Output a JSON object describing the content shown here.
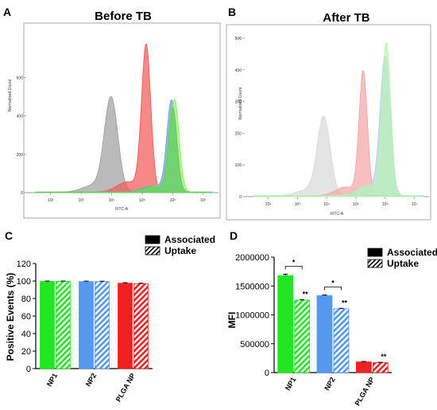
{
  "panels": {
    "a": {
      "letter": "A",
      "title": "Before TB"
    },
    "b": {
      "letter": "B",
      "title": "After TB"
    },
    "c": {
      "letter": "C"
    },
    "d": {
      "letter": "D"
    }
  },
  "flow": {
    "xlabel": "FITC-A",
    "ylabel": "Normalized Count",
    "x_ticks": [
      {
        "v": 2,
        "label": "10²"
      },
      {
        "v": 3,
        "label": "10³"
      },
      {
        "v": 4,
        "label": "10⁴"
      },
      {
        "v": 5,
        "label": "10⁵"
      },
      {
        "v": 6,
        "label": "10⁶"
      },
      {
        "v": 7,
        "label": "10⁷"
      }
    ]
  },
  "chart_data": [
    {
      "type": "area",
      "panel": "A",
      "title": "Before TB",
      "xlabel": "FITC-A",
      "ylabel": "Normalized Count",
      "x_scale": "log10",
      "xlim": [
        1.2,
        7.5
      ],
      "ylim": [
        0,
        860
      ],
      "y_ticks": [
        0,
        200,
        400,
        600
      ],
      "series": [
        {
          "color": "#a0a0a0",
          "peak_x": 3.98,
          "peak_y": 492,
          "spread": 0.22
        },
        {
          "color": "#f25a5a",
          "peak_x": 5.13,
          "peak_y": 766,
          "spread": 0.15
        },
        {
          "color": "#6fa0e0",
          "peak_x": 5.96,
          "peak_y": 476,
          "spread": 0.15
        },
        {
          "color": "#94f064",
          "peak_x": 6.06,
          "peak_y": 478,
          "spread": 0.15
        },
        {
          "color": "#66cc66",
          "peak_x": 6.0,
          "peak_y": 440,
          "spread": 0.14
        }
      ]
    },
    {
      "type": "area",
      "panel": "B",
      "title": "After TB",
      "xlabel": "FITC-A",
      "ylabel": "Normalized Count",
      "x_scale": "log10",
      "xlim": [
        1.2,
        7.5
      ],
      "ylim": [
        0,
        520
      ],
      "y_ticks": [
        0,
        100,
        200,
        300,
        400,
        500
      ],
      "series": [
        {
          "color": "#d9d9d9",
          "peak_x": 3.9,
          "peak_y": 248,
          "spread": 0.22
        },
        {
          "color": "#f4a6a6",
          "peak_x": 5.25,
          "peak_y": 392,
          "spread": 0.14
        },
        {
          "color": "#b3cdf2",
          "peak_x": 6.0,
          "peak_y": 436,
          "spread": 0.17
        },
        {
          "color": "#b8f2b0",
          "peak_x": 6.04,
          "peak_y": 478,
          "spread": 0.15
        }
      ]
    },
    {
      "type": "bar",
      "panel": "C",
      "ylabel": "Positive Events (%)",
      "ylim": [
        0,
        120
      ],
      "y_ticks": [
        0,
        20,
        40,
        60,
        80,
        100,
        120
      ],
      "categories": [
        "NP1",
        "NP2",
        "PLGA NP"
      ],
      "colors": [
        "#22e622",
        "#5599ee",
        "#ee2222"
      ],
      "series": [
        {
          "name": "Associated",
          "values": [
            99.5,
            99.4,
            97.5
          ],
          "errors": [
            0.5,
            0.5,
            0.6
          ]
        },
        {
          "name": "Uptake",
          "values": [
            99.6,
            99.4,
            97.0
          ],
          "errors": [
            0.4,
            0.4,
            0.5
          ]
        }
      ],
      "legend_position": "top-right"
    },
    {
      "type": "bar",
      "panel": "D",
      "ylabel": "MFI",
      "ylim": [
        0,
        2000000
      ],
      "y_ticks": [
        0,
        500000,
        1000000,
        1500000,
        2000000
      ],
      "categories": [
        "NP1",
        "NP2",
        "PLGA NP"
      ],
      "colors": [
        "#22e622",
        "#5599ee",
        "#ee2222"
      ],
      "series": [
        {
          "name": "Associated",
          "values": [
            1680000,
            1335000,
            185000
          ],
          "errors": [
            25000,
            10000,
            8000
          ]
        },
        {
          "name": "Uptake",
          "values": [
            1255000,
            1105000,
            172000
          ],
          "errors": [
            8000,
            8000,
            6000
          ]
        }
      ],
      "annotations": {
        "pair_stars": [
          "*",
          "*",
          ""
        ],
        "uptake_stars": [
          "**",
          "**",
          "**"
        ]
      },
      "legend_position": "top-right"
    }
  ]
}
